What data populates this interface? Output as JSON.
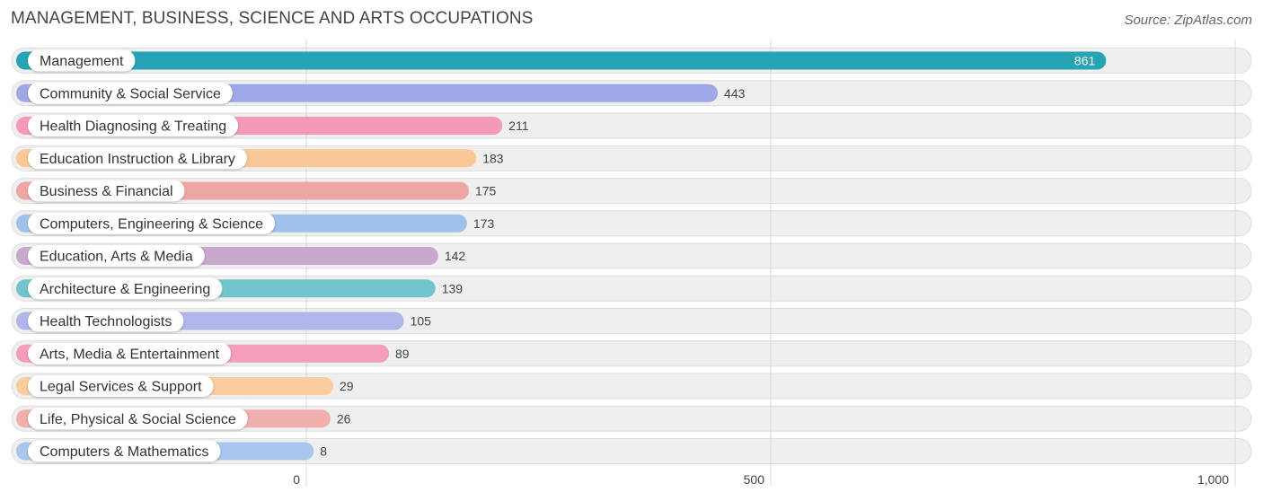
{
  "header": {
    "title": "MANAGEMENT, BUSINESS, SCIENCE AND ARTS OCCUPATIONS",
    "source": "Source: ZipAtlas.com"
  },
  "chart_data": {
    "type": "bar",
    "orientation": "horizontal",
    "title": "MANAGEMENT, BUSINESS, SCIENCE AND ARTS OCCUPATIONS",
    "xlabel": "",
    "ylabel": "",
    "xlim": [
      0,
      1000
    ],
    "ticks": [
      0,
      500,
      1000
    ],
    "tick_labels": [
      "0",
      "500",
      "1,000"
    ],
    "grid": true,
    "categories": [
      "Management",
      "Community & Social Service",
      "Health Diagnosing & Treating",
      "Education Instruction & Library",
      "Business & Financial",
      "Computers, Engineering & Science",
      "Education, Arts & Media",
      "Architecture & Engineering",
      "Health Technologists",
      "Arts, Media & Entertainment",
      "Legal Services & Support",
      "Life, Physical & Social Science",
      "Computers & Mathematics"
    ],
    "values": [
      861,
      443,
      211,
      183,
      175,
      173,
      142,
      139,
      105,
      89,
      29,
      26,
      8
    ],
    "value_labels": [
      "861",
      "443",
      "211",
      "183",
      "175",
      "173",
      "142",
      "139",
      "105",
      "89",
      "29",
      "26",
      "8"
    ],
    "colors": [
      "#26a3b4",
      "#9ea8e4",
      "#f49ab8",
      "#f9c896",
      "#eea6a4",
      "#a0c2ea",
      "#c8a8cc",
      "#72c4cc",
      "#b0b6ea",
      "#f59ebc",
      "#f9cc9e",
      "#f0aeac",
      "#a8c6ee"
    ]
  }
}
